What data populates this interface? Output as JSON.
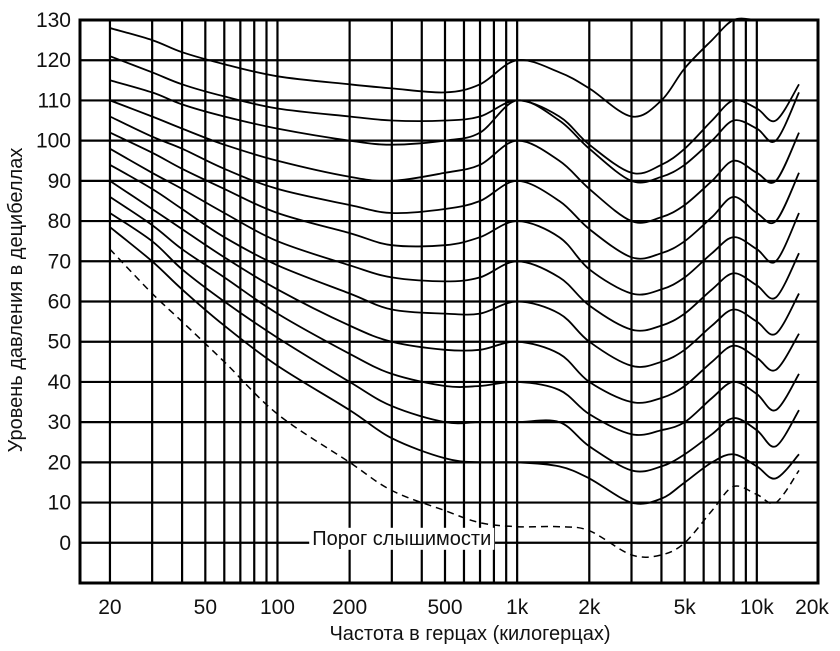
{
  "chart_data": {
    "type": "line",
    "title": "",
    "xlabel": "Частота в герцах (килогерцах)",
    "ylabel": "Уровень давления в децибеллах",
    "x_scale": "log",
    "xlim": [
      15,
      18000
    ],
    "ylim": [
      -10,
      130
    ],
    "grid": true,
    "x_tick_labels": [
      {
        "v": 20,
        "label": "20"
      },
      {
        "v": 50,
        "label": "50"
      },
      {
        "v": 100,
        "label": "100"
      },
      {
        "v": 200,
        "label": "200"
      },
      {
        "v": 500,
        "label": "500"
      },
      {
        "v": 1000,
        "label": "1k"
      },
      {
        "v": 2000,
        "label": "2k"
      },
      {
        "v": 5000,
        "label": "5k"
      },
      {
        "v": 10000,
        "label": "10k"
      },
      {
        "v": 20000,
        "label": "20k"
      }
    ],
    "y_ticks": [
      0,
      10,
      20,
      30,
      40,
      50,
      60,
      70,
      80,
      90,
      100,
      110,
      120,
      130
    ],
    "x_grid": [
      20,
      30,
      40,
      50,
      60,
      70,
      80,
      90,
      100,
      200,
      300,
      400,
      500,
      600,
      700,
      800,
      900,
      1000,
      2000,
      3000,
      4000,
      5000,
      6000,
      7000,
      8000,
      9000,
      10000
    ],
    "x": [
      20,
      30,
      40,
      60,
      100,
      200,
      300,
      500,
      700,
      1000,
      1500,
      2000,
      3000,
      4000,
      5000,
      6500,
      8000,
      10000,
      12000,
      15000
    ],
    "series": [
      {
        "values": [
          78.5,
          70,
          63,
          54,
          44,
          33,
          26,
          21,
          20,
          20,
          19,
          16,
          10,
          11,
          15,
          20,
          22,
          19,
          16,
          22
        ]
      },
      {
        "values": [
          82,
          75,
          68,
          60,
          51,
          40,
          34,
          30,
          30,
          30,
          30,
          24,
          18,
          19,
          22,
          27,
          31,
          28,
          24,
          33
        ]
      },
      {
        "values": [
          86,
          79,
          73,
          66,
          57,
          47,
          42,
          39,
          39,
          40,
          38,
          32,
          27,
          28,
          30,
          36,
          40,
          37,
          33,
          42
        ]
      },
      {
        "values": [
          90,
          83,
          78,
          71,
          63,
          54,
          50,
          48,
          48,
          50,
          47,
          40,
          35,
          36,
          39,
          45,
          49,
          46,
          43,
          52
        ]
      },
      {
        "values": [
          94,
          88,
          83,
          76,
          69,
          62,
          58,
          57,
          57,
          60,
          57,
          50,
          44,
          45,
          48,
          54,
          58,
          55,
          52,
          62
        ]
      },
      {
        "values": [
          98,
          92,
          88,
          82,
          75,
          69,
          66,
          65,
          66,
          70,
          66,
          59,
          53,
          54,
          57,
          63,
          67,
          64,
          61,
          72
        ]
      },
      {
        "values": [
          102,
          97,
          93,
          88,
          82,
          77,
          74,
          74,
          76,
          80,
          76,
          68,
          62,
          63,
          66,
          72,
          76,
          73,
          70,
          82
        ]
      },
      {
        "values": [
          106,
          101,
          98,
          93,
          88,
          84,
          82,
          83,
          85,
          90,
          85,
          78,
          71,
          72,
          75,
          81,
          86,
          82,
          80,
          92
        ]
      },
      {
        "values": [
          110,
          106,
          103,
          99,
          95,
          91,
          90,
          92,
          94,
          100,
          95,
          88,
          80,
          81,
          84,
          90,
          95,
          92,
          90,
          102
        ]
      },
      {
        "values": [
          115,
          112,
          109,
          106,
          103,
          100,
          99,
          100,
          102,
          110,
          105,
          98,
          90,
          91,
          94,
          100,
          105,
          103,
          100,
          112
        ]
      },
      {
        "values": [
          121,
          117,
          114,
          111,
          108,
          106,
          105,
          105,
          106,
          110,
          106,
          99,
          92,
          94,
          98,
          105,
          110,
          108,
          105,
          114
        ]
      },
      {
        "values": [
          128,
          125,
          122,
          119,
          116,
          114,
          113,
          112,
          114,
          120,
          117,
          113,
          106,
          110,
          118,
          125,
          130,
          130,
          130,
          130
        ]
      }
    ],
    "threshold": {
      "label": "Порог слышимости",
      "values": [
        73,
        62,
        55,
        45,
        32,
        20,
        13,
        8,
        5,
        4,
        4,
        3,
        -3,
        -3,
        0,
        8,
        14,
        12,
        10,
        18
      ]
    }
  }
}
